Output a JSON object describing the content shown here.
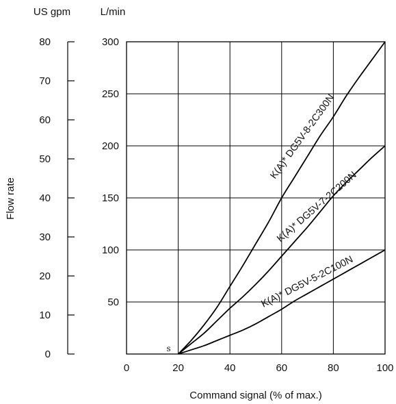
{
  "chart_data": {
    "type": "line",
    "xlabel": "Command signal (% of max.)",
    "ylabel": "Flow rate",
    "y_unit_left": "US gpm",
    "y_unit_right": "L/min",
    "xlim": [
      0,
      100
    ],
    "ylim_lmin": [
      0,
      300
    ],
    "ylim_gpm": [
      0,
      80
    ],
    "x_ticks": [
      0,
      20,
      40,
      60,
      80,
      100
    ],
    "y_ticks_lmin": [
      50,
      100,
      150,
      200,
      250,
      300
    ],
    "y_ticks_gpm": [
      0,
      10,
      20,
      30,
      40,
      50,
      60,
      70,
      80
    ],
    "grid": true,
    "start_marker": "s",
    "series": [
      {
        "name": "K(A)* DG5V-8-2C300N",
        "x": [
          20,
          25,
          30,
          35,
          40,
          45,
          50,
          55,
          60,
          65,
          70,
          75,
          80,
          85,
          90,
          95,
          100
        ],
        "y": [
          0,
          13,
          28,
          45,
          65,
          85,
          106,
          127,
          150,
          170,
          190,
          210,
          228,
          248,
          266,
          283,
          300
        ]
      },
      {
        "name": "K(A)* DG5V-7-2C200N",
        "x": [
          20,
          25,
          30,
          35,
          40,
          45,
          50,
          55,
          60,
          65,
          70,
          75,
          80,
          85,
          90,
          95,
          100
        ],
        "y": [
          0,
          10,
          20,
          32,
          44,
          55,
          67,
          80,
          94,
          108,
          122,
          137,
          152,
          165,
          177,
          189,
          200
        ]
      },
      {
        "name": "K(A)* DG5V-5-2C100N",
        "x": [
          20,
          25,
          30,
          35,
          40,
          45,
          50,
          55,
          60,
          65,
          70,
          75,
          80,
          85,
          90,
          95,
          100
        ],
        "y": [
          0,
          4,
          8,
          13,
          18,
          23,
          29,
          36,
          43,
          51,
          58,
          65,
          72,
          79,
          86,
          93,
          100
        ]
      }
    ]
  }
}
